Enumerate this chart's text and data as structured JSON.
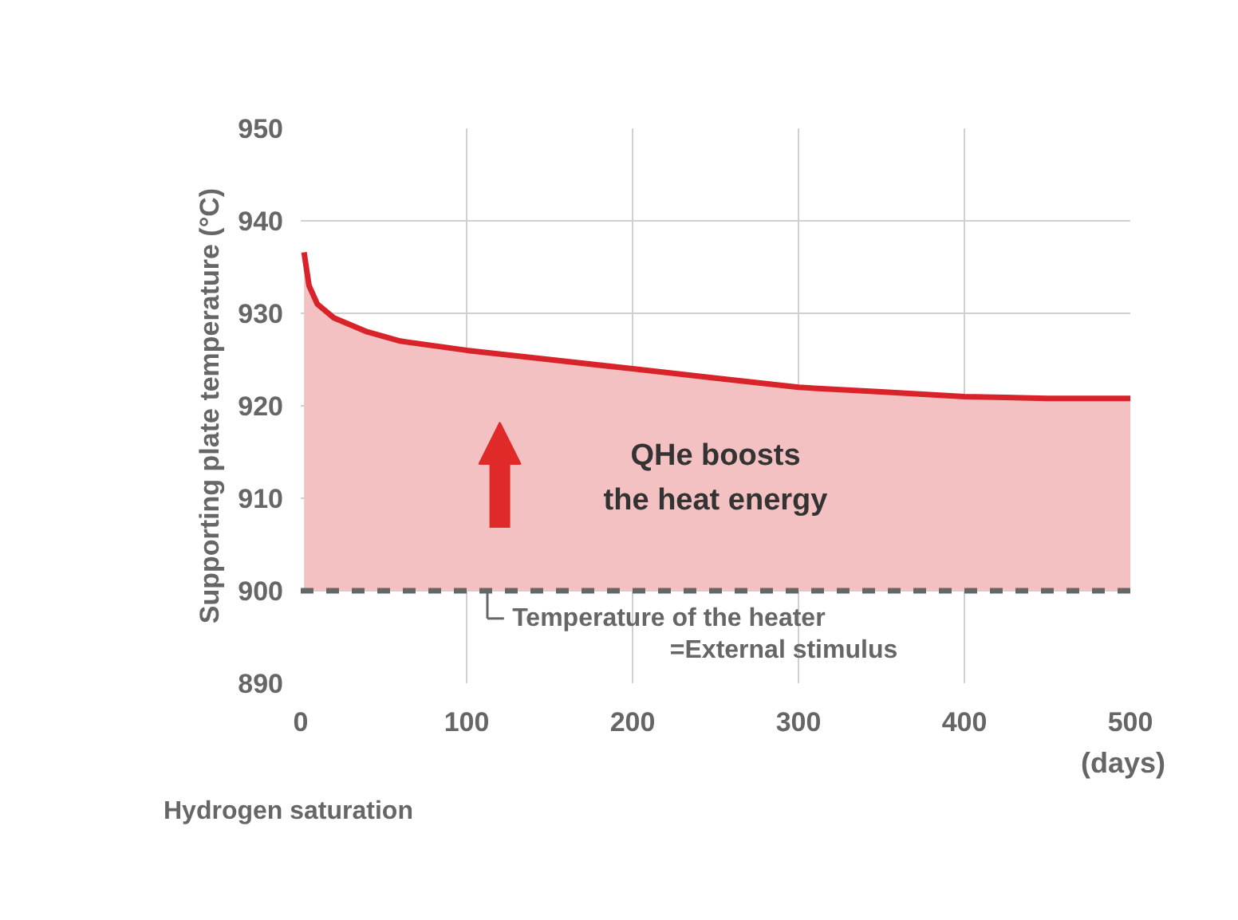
{
  "chart_data": {
    "type": "area",
    "xlabel": "(days)",
    "ylabel": "Supporting plate temperature (°C)",
    "x": [
      2,
      5,
      10,
      20,
      40,
      60,
      100,
      150,
      200,
      250,
      300,
      350,
      400,
      450,
      500
    ],
    "series": [
      {
        "color": "#d9232a",
        "values": [
          936.6,
          933,
          931,
          929.5,
          928,
          927,
          926,
          925,
          924,
          923,
          922,
          921.5,
          921,
          920.8,
          920.8
        ]
      }
    ],
    "xlim": [
      0,
      500
    ],
    "xticks": [
      0,
      100,
      200,
      300,
      400,
      500
    ],
    "ylim": [
      890,
      950
    ],
    "yticks": [
      890,
      900,
      910,
      920,
      930,
      940,
      950
    ],
    "grid": true,
    "ref_lines": [
      {
        "axis": "y",
        "value": 900,
        "label": "Temperature of the heater\n=External stimulus",
        "color": "#666666",
        "line_style": "dashed"
      }
    ],
    "annotations": [
      "QHe boosts\nthe heat energy",
      "Hydrogen saturation"
    ]
  }
}
